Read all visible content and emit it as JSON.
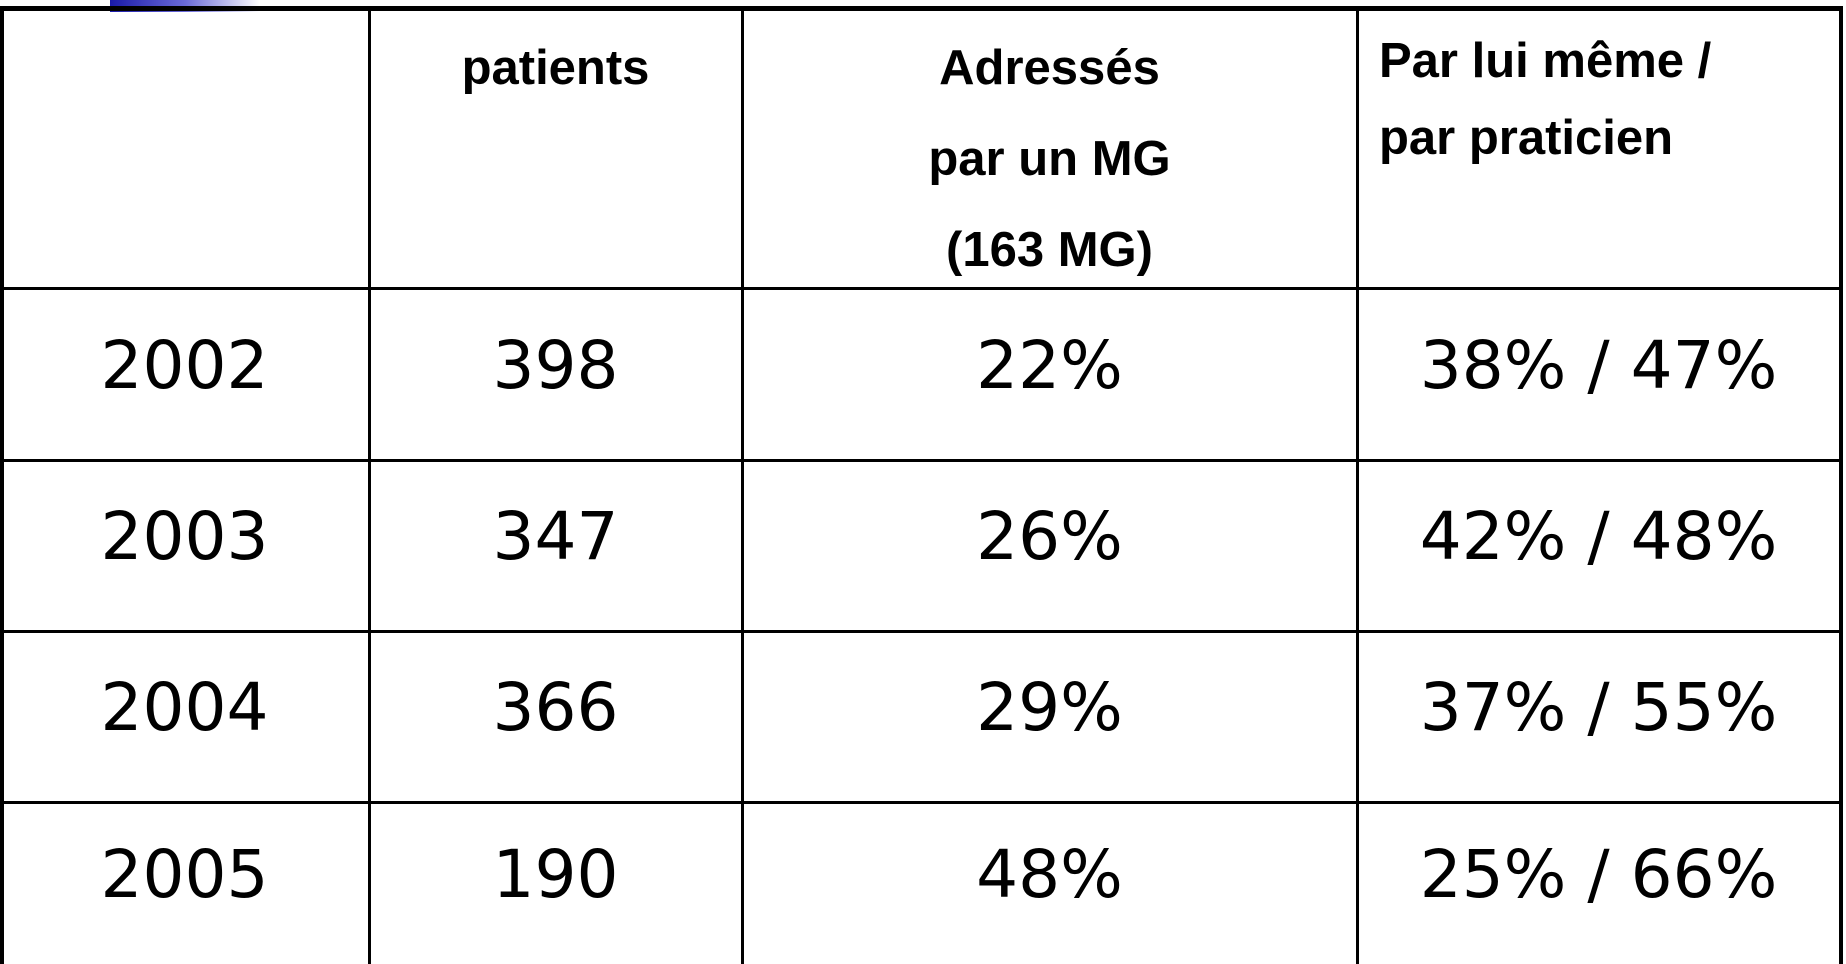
{
  "table": {
    "header": [
      [],
      [
        "patients"
      ],
      [
        "Adressés",
        "par un MG",
        "(163 MG)"
      ],
      [
        "Par lui même /",
        "par praticien"
      ]
    ],
    "rows": [
      [
        "2002",
        "398",
        "22%",
        "38% / 47%"
      ],
      [
        "2003",
        "347",
        "26%",
        "42% / 48%"
      ],
      [
        "2004",
        "366",
        "29%",
        "37% / 55%"
      ],
      [
        "2005",
        "190",
        "48%",
        "25% / 66%"
      ]
    ]
  }
}
